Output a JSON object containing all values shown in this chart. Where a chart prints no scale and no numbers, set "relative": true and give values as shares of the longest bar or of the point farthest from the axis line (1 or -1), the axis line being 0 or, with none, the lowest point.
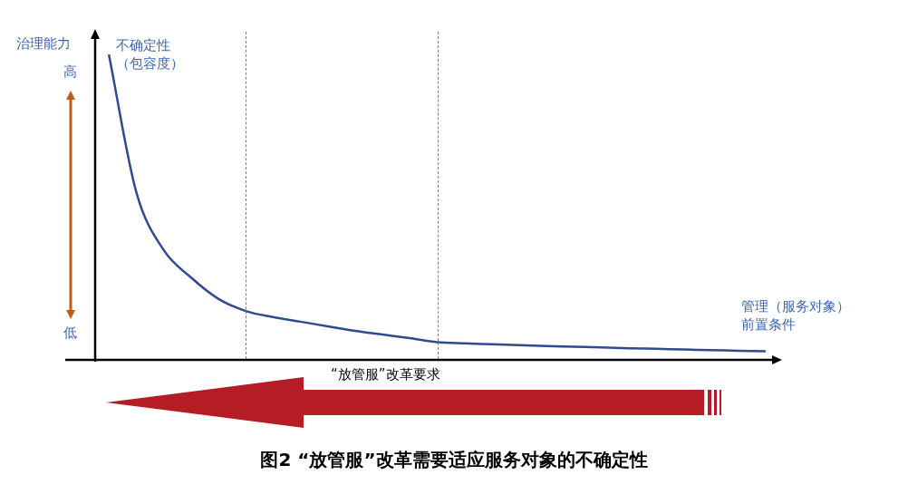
{
  "chart_data": {
    "type": "line",
    "title": "图2 “放管服”改革需要适应服务对象的不确定性",
    "ylabel": "治理能力",
    "xlabel": "“放管服”改革要求",
    "annotations": [
      "不确定性（包容度）",
      "管理（服务对象）前置条件",
      "高",
      "低"
    ],
    "relative": true,
    "categories": [
      null,
      null,
      null,
      null,
      null,
      null,
      null,
      null,
      null,
      null,
      null,
      null,
      null,
      null,
      null,
      null,
      null,
      null,
      null,
      null,
      null,
      null,
      null,
      null,
      null
    ],
    "series": [
      {
        "color": "#2f4b8f",
        "values": [
          1.0,
          0.55,
          0.36,
          0.27,
          0.2,
          0.16,
          0.14,
          0.125,
          0.11,
          0.095,
          0.083,
          0.071,
          0.058,
          0.054,
          0.051,
          0.048,
          0.045,
          0.043,
          0.041,
          0.038,
          0.036,
          0.034,
          0.032,
          0.03,
          0.028
        ]
      }
    ],
    "grid": false,
    "legend": false,
    "marker": "none",
    "line_style": "solid"
  }
}
